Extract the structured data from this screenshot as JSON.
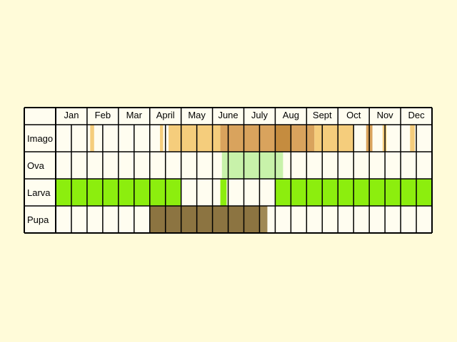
{
  "diagram": {
    "type": "phenology-calendar",
    "months": [
      "Jan",
      "Feb",
      "Mar",
      "April",
      "May",
      "June",
      "July",
      "Aug",
      "Sept",
      "Oct",
      "Nov",
      "Dec"
    ],
    "subdivisions_per_month": 2,
    "stages": [
      {
        "label": "Imago",
        "periods": [
          {
            "start": 2.2,
            "end": 2.45,
            "level": "low"
          },
          {
            "start": 6.65,
            "end": 6.85,
            "level": "low"
          },
          {
            "start": 7.2,
            "end": 10.5,
            "level": "low"
          },
          {
            "start": 10.7,
            "end": 11.1,
            "level": "low"
          },
          {
            "start": 11.4,
            "end": 11.6,
            "level": "low"
          },
          {
            "start": 12.3,
            "end": 12.5,
            "level": "low"
          },
          {
            "start": 10.5,
            "end": 14.0,
            "level": "mid"
          },
          {
            "start": 15.0,
            "end": 16.5,
            "level": "mid"
          },
          {
            "start": 14.0,
            "end": 15.0,
            "level": "high"
          },
          {
            "start": 16.5,
            "end": 19.0,
            "level": "low"
          },
          {
            "start": 19.8,
            "end": 20.2,
            "level": "mid"
          },
          {
            "start": 20.85,
            "end": 21.1,
            "level": "low"
          },
          {
            "start": 22.6,
            "end": 22.9,
            "level": "low"
          }
        ]
      },
      {
        "label": "Ova",
        "periods": [
          {
            "start": 10.6,
            "end": 14.5,
            "level": "low"
          }
        ]
      },
      {
        "label": "Larva",
        "periods": [
          {
            "start": 0.0,
            "end": 8.0,
            "level": "high"
          },
          {
            "start": 10.5,
            "end": 10.9,
            "level": "high"
          },
          {
            "start": 14.0,
            "end": 24.0,
            "level": "high"
          }
        ]
      },
      {
        "label": "Pupa",
        "periods": [
          {
            "start": 6.0,
            "end": 13.0,
            "level": "high"
          },
          {
            "start": 13.0,
            "end": 13.5,
            "level": "mid"
          }
        ]
      }
    ],
    "colors": {
      "background": "#fffbd9",
      "cell": "#fffdf0",
      "grid": "#000000",
      "Imago": {
        "low": "#f5cd7c",
        "mid": "#d9a35d",
        "high": "#c58c3f"
      },
      "Ova": {
        "low": "#c8f2aa"
      },
      "Larva": {
        "high": "#8cee0e"
      },
      "Pupa": {
        "high": "#8c7441",
        "mid": "#a08954"
      }
    }
  }
}
